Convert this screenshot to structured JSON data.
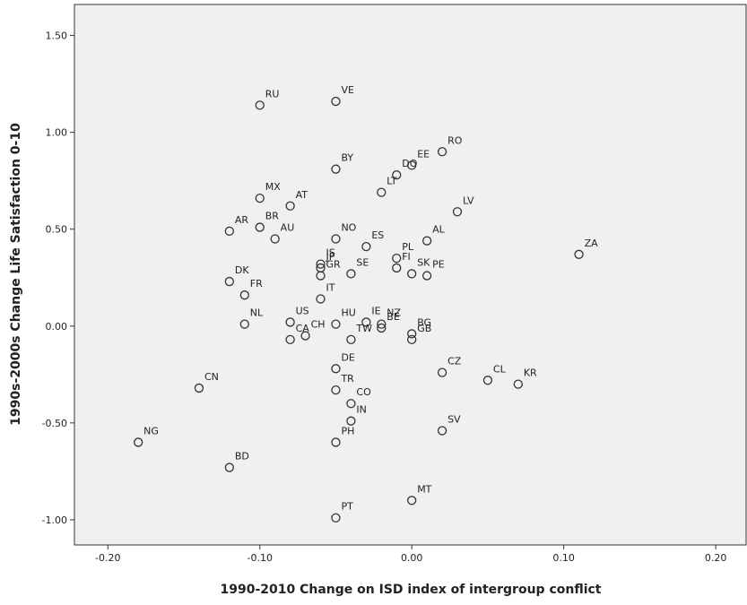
{
  "chart_data": {
    "type": "scatter",
    "x_label": "1990-2010 Change on ISD index of intergroup conflict",
    "y_label": "1990s-2000s Change Life Satisfaction 0-10",
    "xlim": [
      -0.222,
      0.22
    ],
    "ylim": [
      -1.13,
      1.66
    ],
    "xticks": [
      {
        "value": -0.2,
        "label": "-0.20"
      },
      {
        "value": -0.1,
        "label": "-0.10"
      },
      {
        "value": 0,
        "label": "0.00"
      },
      {
        "value": 0.1,
        "label": "0.10"
      },
      {
        "value": 0.2,
        "label": "0.20"
      }
    ],
    "yticks": [
      {
        "value": -1,
        "label": "-1.00"
      },
      {
        "value": -0.5,
        "label": "-0.50"
      },
      {
        "value": 0,
        "label": "0.00"
      },
      {
        "value": 0.5,
        "label": "0.50"
      },
      {
        "value": 1,
        "label": "1.00"
      },
      {
        "value": 1.5,
        "label": "1.50"
      }
    ],
    "labels": [
      "RU",
      "VE",
      "RO",
      "EE",
      "DO",
      "LT",
      "BY",
      "MX",
      "AT",
      "LV",
      "AR",
      "BR",
      "AU",
      "NO",
      "ES",
      "AL",
      "PL",
      "ZA",
      "IS",
      "JP",
      "GR",
      "SE",
      "FI",
      "SK",
      "PE",
      "DK",
      "FR",
      "NL",
      "CH",
      "US",
      "IT",
      "HU",
      "IE",
      "NZ",
      "TW",
      "BE",
      "BG",
      "GB",
      "CA",
      "DE",
      "TR",
      "CZ",
      "CL",
      "KR",
      "CN",
      "CO",
      "IN",
      "SV",
      "NG",
      "PH",
      "BD",
      "MT",
      "PT"
    ],
    "x": [
      -0.1,
      -0.05,
      0.02,
      0.0,
      -0.01,
      -0.02,
      -0.05,
      -0.1,
      -0.08,
      0.03,
      -0.12,
      -0.1,
      -0.09,
      -0.05,
      -0.03,
      0.01,
      -0.01,
      0.11,
      -0.06,
      -0.06,
      -0.06,
      -0.04,
      -0.01,
      0.0,
      0.01,
      -0.12,
      -0.11,
      -0.11,
      -0.07,
      -0.08,
      -0.06,
      -0.05,
      -0.03,
      -0.02,
      -0.04,
      -0.02,
      0.0,
      0.0,
      -0.08,
      -0.05,
      -0.05,
      0.02,
      0.05,
      0.07,
      -0.14,
      -0.04,
      -0.04,
      0.02,
      -0.18,
      -0.05,
      -0.12,
      0.0,
      -0.05
    ],
    "values": [
      1.14,
      1.16,
      0.9,
      0.83,
      0.78,
      0.69,
      0.81,
      0.66,
      0.62,
      0.59,
      0.49,
      0.51,
      0.45,
      0.45,
      0.41,
      0.44,
      0.35,
      0.37,
      0.32,
      0.3,
      0.26,
      0.27,
      0.3,
      0.27,
      0.26,
      0.23,
      0.16,
      0.01,
      -0.05,
      0.02,
      0.14,
      0.01,
      0.02,
      0.01,
      -0.07,
      -0.01,
      -0.04,
      -0.07,
      -0.07,
      -0.22,
      -0.33,
      -0.24,
      -0.28,
      -0.3,
      -0.32,
      -0.4,
      -0.49,
      -0.54,
      -0.6,
      -0.6,
      -0.73,
      -0.9,
      -0.99
    ],
    "color": "#333333",
    "background": "#f0f0f0"
  }
}
